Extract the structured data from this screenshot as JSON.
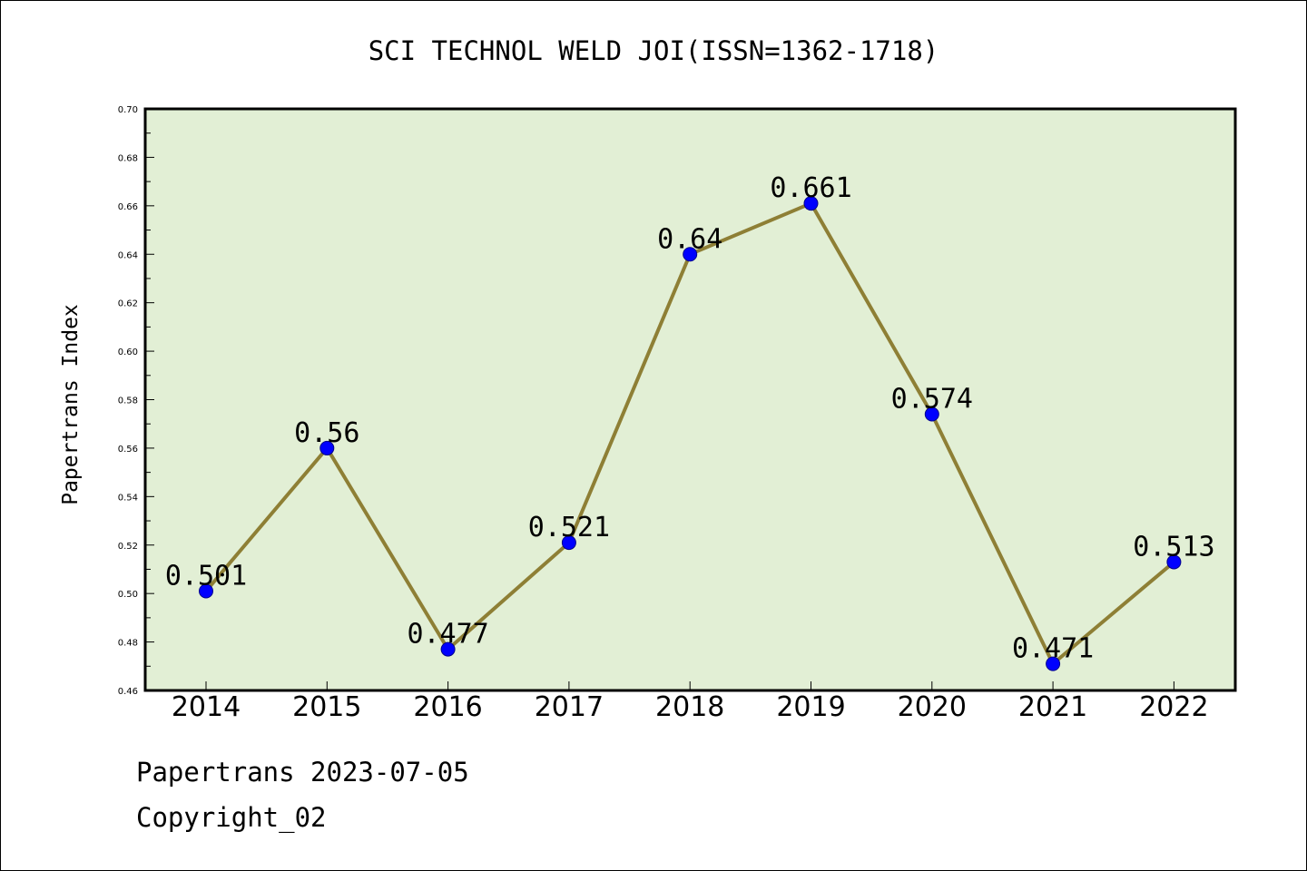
{
  "chart_data": {
    "type": "line",
    "title": "SCI TECHNOL WELD JOI(ISSN=1362-1718)",
    "xlabel": "",
    "ylabel": "Papertrans Index",
    "categories": [
      "2014",
      "2015",
      "2016",
      "2017",
      "2018",
      "2019",
      "2020",
      "2021",
      "2022"
    ],
    "series": [
      {
        "values": [
          0.501,
          0.56,
          0.477,
          0.521,
          0.64,
          0.661,
          0.574,
          0.471,
          0.513
        ]
      }
    ],
    "data_labels": [
      "0.501",
      "0.56",
      "0.477",
      "0.521",
      "0.64",
      "0.661",
      "0.574",
      "0.471",
      "0.513"
    ],
    "ylim": [
      0.46,
      0.7
    ],
    "y_ticks": [
      "0.46",
      "0.48",
      "0.50",
      "0.52",
      "0.54",
      "0.56",
      "0.58",
      "0.60",
      "0.62",
      "0.64",
      "0.66",
      "0.68",
      "0.70"
    ],
    "grid": false,
    "colors": {
      "plot_background": "#e2efd5",
      "line": "#8e7f35",
      "marker": "#0000ff",
      "marker_edge": "#00008b"
    }
  },
  "footer": {
    "line1": "Papertrans 2023-07-05",
    "line2": "Copyright_02"
  }
}
